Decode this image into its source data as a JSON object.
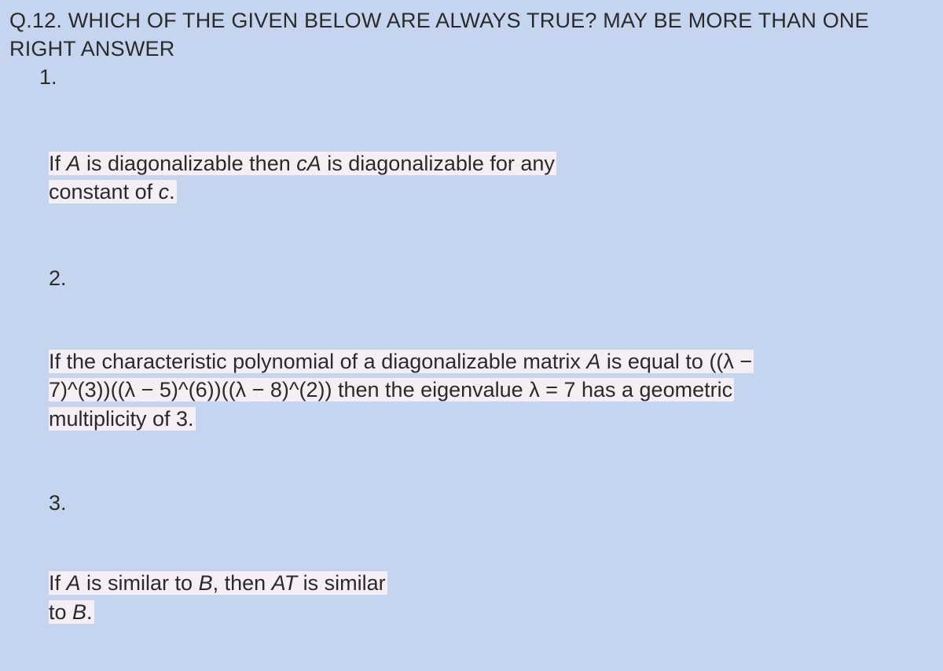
{
  "question": {
    "title": "Q.12. WHICH OF THE GIVEN BELOW ARE ALWAYS TRUE? MAY BE MORE THAN ONE RIGHT ANSWER",
    "background_color": "#c6d5ef",
    "highlight_color": "#f5eff5",
    "text_color": "#2a2a2a",
    "font_size": 27,
    "options": [
      {
        "number": "1.",
        "lines": [
          {
            "prefix": " If ",
            "italic1": "A",
            "middle": " is diagonalizable then ",
            "italic2": "cA",
            "suffix": " is diagonalizable for any"
          },
          {
            "text": "constant of ",
            "italic": "c",
            "end": "."
          }
        ]
      },
      {
        "number": "2.",
        "lines": [
          {
            "text1": "If the characteristic polynomial of a diagonalizable matrix ",
            "italicA": "A",
            "text2": " is equal to ((λ −"
          },
          {
            "text": "7)^(3))((λ − 5)^(6))((λ − 8)^(2)) then the eigenvalue λ  =  7 has a geometric"
          },
          {
            "text": "multiplicity of 3."
          }
        ]
      },
      {
        "number": "3.",
        "lines": [
          {
            "t1": "If ",
            "iA": "A",
            "t2": " is similar to ",
            "iB": "B",
            "t3": ", then ",
            "iAT": "AT ",
            "t4": "is similar"
          },
          {
            "t1": "to ",
            "iB": "B",
            "t2": "."
          }
        ]
      }
    ]
  }
}
